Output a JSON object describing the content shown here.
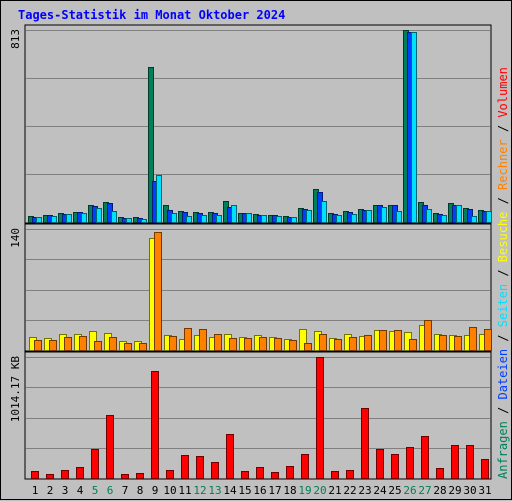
{
  "title": "Tages-Statistik im Monat Oktober 2024",
  "colors": {
    "hits": "#00805a",
    "files": "#0040ff",
    "pages": "#00e0ff",
    "visits": "#ffff00",
    "sites": "#ff8000",
    "kbytes": "#ff0000",
    "weekend_label": "#00805a",
    "weekday_label": "#000000"
  },
  "chart_data": [
    {
      "type": "bar",
      "panel": "top",
      "y_max_label": "813",
      "ylim": [
        0,
        813
      ],
      "categories": [
        "1",
        "2",
        "3",
        "4",
        "5",
        "6",
        "7",
        "8",
        "9",
        "10",
        "11",
        "12",
        "13",
        "14",
        "15",
        "16",
        "17",
        "18",
        "19",
        "20",
        "21",
        "22",
        "23",
        "24",
        "25",
        "26",
        "27",
        "28",
        "29",
        "30",
        "31"
      ],
      "weekend_days": [
        "5",
        "6",
        "12",
        "13",
        "19",
        "20",
        "26",
        "27"
      ],
      "side_labels": [
        "Anfragen",
        "Dateien",
        "Seiten"
      ],
      "series": [
        {
          "name": "Anfragen",
          "color": "#00805a",
          "values": [
            25,
            30,
            38,
            43,
            72,
            84,
            20,
            20,
            655,
            74,
            47,
            44,
            42,
            90,
            40,
            33,
            30,
            24,
            58,
            139,
            36,
            46,
            56,
            73,
            73,
            813,
            86,
            37,
            79,
            61,
            50
          ]
        },
        {
          "name": "Dateien",
          "color": "#0040ff",
          "values": [
            23,
            28,
            35,
            41,
            67,
            80,
            18,
            17,
            175,
            50,
            44,
            40,
            38,
            64,
            38,
            31,
            28,
            22,
            55,
            128,
            34,
            43,
            52,
            70,
            70,
            805,
            72,
            35,
            74,
            55,
            48
          ]
        },
        {
          "name": "Seiten",
          "color": "#00e0ff",
          "values": [
            20,
            26,
            32,
            38,
            58,
            48,
            15,
            14,
            198,
            40,
            27,
            28,
            29,
            72,
            37,
            29,
            25,
            20,
            50,
            90,
            28,
            32,
            49,
            65,
            47,
            805,
            53,
            31,
            70,
            25,
            47
          ]
        }
      ]
    },
    {
      "type": "bar",
      "panel": "middle",
      "y_max_label": "140",
      "ylim": [
        0,
        140
      ],
      "categories": [
        "1",
        "2",
        "3",
        "4",
        "5",
        "6",
        "7",
        "8",
        "9",
        "10",
        "11",
        "12",
        "13",
        "14",
        "15",
        "16",
        "17",
        "18",
        "19",
        "20",
        "21",
        "22",
        "23",
        "24",
        "25",
        "26",
        "27",
        "28",
        "29",
        "30",
        "31"
      ],
      "side_labels": [
        "Besuche",
        "Rechner"
      ],
      "series": [
        {
          "name": "Besuche",
          "color": "#ffff00",
          "values": [
            15,
            14,
            19,
            19,
            22,
            20,
            10,
            10,
            130,
            17,
            13,
            17,
            15,
            19,
            15,
            17,
            15,
            13,
            24,
            22,
            14,
            19,
            16,
            23,
            22,
            21,
            29,
            18,
            17,
            17,
            18
          ]
        },
        {
          "name": "Rechner",
          "color": "#ff8000",
          "values": [
            12,
            12,
            15,
            16,
            10,
            15,
            8,
            8,
            137,
            16,
            25,
            24,
            19,
            14,
            14,
            15,
            14,
            11,
            8,
            19,
            13,
            15,
            17,
            23,
            23,
            13,
            35,
            17,
            16,
            27,
            24
          ]
        }
      ]
    },
    {
      "type": "bar",
      "panel": "bottom",
      "y_max_label": "1014.17 KB",
      "ylim": [
        0,
        1014.17
      ],
      "categories": [
        "1",
        "2",
        "3",
        "4",
        "5",
        "6",
        "7",
        "8",
        "9",
        "10",
        "11",
        "12",
        "13",
        "14",
        "15",
        "16",
        "17",
        "18",
        "19",
        "20",
        "21",
        "22",
        "23",
        "24",
        "25",
        "26",
        "27",
        "28",
        "29",
        "30",
        "31"
      ],
      "side_labels": [
        "Volumen"
      ],
      "series": [
        {
          "name": "Volumen",
          "color": "#ff0000",
          "values": [
            55,
            35,
            70,
            90,
            245,
            525,
            35,
            40,
            895,
            65,
            195,
            185,
            130,
            370,
            60,
            95,
            50,
            100,
            205,
            1014.17,
            55,
            65,
            585,
            245,
            200,
            260,
            355,
            85,
            275,
            275,
            160
          ]
        }
      ]
    }
  ]
}
